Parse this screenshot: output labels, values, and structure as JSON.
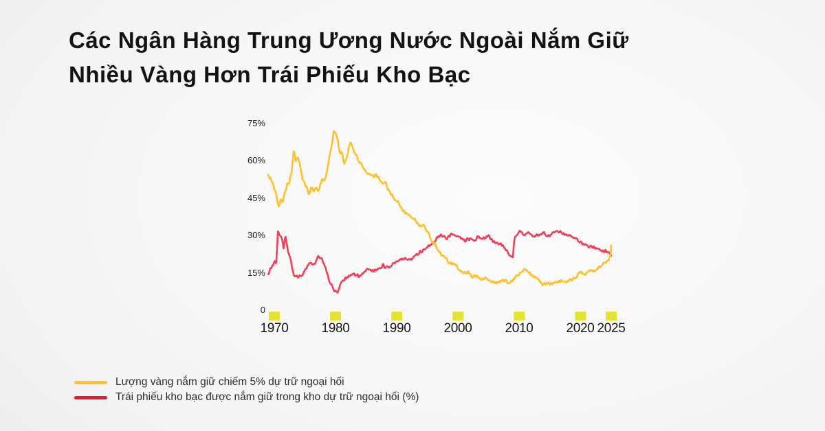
{
  "title": {
    "line1": "Các Ngân Hàng Trung Ương Nước Ngoài Nắm Giữ",
    "line2": "Nhiều Vàng Hơn Trái Phiếu Kho Bạc"
  },
  "colors": {
    "gold_line": "#ffc02b",
    "treasury_line": "#f23e56",
    "treasury_swatch": "#e6172f",
    "tick_square": "#e4e233",
    "title_text": "#131313",
    "axis_text": "#1b1b1b"
  },
  "legend": {
    "items": [
      {
        "label": "Lượng vàng nắm giữ chiếm 5% dự trữ ngoại hối",
        "color": "#ffc02b"
      },
      {
        "label": "Trái phiếu kho bạc được nắm giữ trong kho dự trữ ngoại hối (%)",
        "color": "#e6172f"
      }
    ]
  },
  "chart_data": {
    "type": "line",
    "title": "Các Ngân Hàng Trung Ương Nước Ngoài Nắm Giữ Nhiều Vàng Hơn Trái Phiếu Kho Bạc",
    "xlabel": "",
    "ylabel": "",
    "grid": false,
    "legend_position": "bottom-left",
    "xlim": [
      1969,
      2025
    ],
    "ylim": [
      0,
      75
    ],
    "x_ticks": [
      1970,
      1980,
      1990,
      2000,
      2010,
      2020,
      2025
    ],
    "y_ticks": [
      {
        "value": 75,
        "label": "75%"
      },
      {
        "value": 60,
        "label": "60%"
      },
      {
        "value": 45,
        "label": "45%"
      },
      {
        "value": 30,
        "label": "30%"
      },
      {
        "value": 15,
        "label": "15%"
      },
      {
        "value": 0,
        "label": "0"
      }
    ],
    "series": [
      {
        "name": "Lượng vàng nắm giữ chiếm 5% dự trữ ngoại hối",
        "color": "#ffc02b",
        "points": [
          [
            1969.0,
            54.5
          ],
          [
            1969.4,
            52.5
          ],
          [
            1969.8,
            50.5
          ],
          [
            1970.2,
            47.5
          ],
          [
            1970.7,
            42.0
          ],
          [
            1971.1,
            44.5
          ],
          [
            1971.4,
            44.0
          ],
          [
            1971.8,
            48.0
          ],
          [
            1972.1,
            50.5
          ],
          [
            1972.5,
            52.0
          ],
          [
            1972.8,
            55.0
          ],
          [
            1973.2,
            64.5
          ],
          [
            1973.5,
            60.0
          ],
          [
            1973.8,
            61.5
          ],
          [
            1974.2,
            58.5
          ],
          [
            1974.6,
            53.0
          ],
          [
            1974.9,
            51.5
          ],
          [
            1975.3,
            49.5
          ],
          [
            1975.6,
            46.0
          ],
          [
            1976.0,
            49.5
          ],
          [
            1976.4,
            48.0
          ],
          [
            1976.8,
            49.5
          ],
          [
            1977.2,
            48.0
          ],
          [
            1977.8,
            53.0
          ],
          [
            1978.2,
            51.5
          ],
          [
            1978.7,
            57.0
          ],
          [
            1979.0,
            62.0
          ],
          [
            1979.4,
            66.5
          ],
          [
            1979.7,
            72.5
          ],
          [
            1980.0,
            71.0
          ],
          [
            1980.3,
            69.0
          ],
          [
            1980.7,
            62.5
          ],
          [
            1981.0,
            64.0
          ],
          [
            1981.4,
            58.5
          ],
          [
            1981.8,
            61.0
          ],
          [
            1982.1,
            64.5
          ],
          [
            1982.4,
            67.8
          ],
          [
            1982.7,
            65.5
          ],
          [
            1983.0,
            64.0
          ],
          [
            1983.4,
            62.3
          ],
          [
            1983.8,
            59.9
          ],
          [
            1984.2,
            58.5
          ],
          [
            1984.6,
            56.9
          ],
          [
            1985.0,
            55.6
          ],
          [
            1985.4,
            54.5
          ],
          [
            1985.8,
            55.0
          ],
          [
            1986.2,
            53.1
          ],
          [
            1986.6,
            54.5
          ],
          [
            1987.0,
            53.1
          ],
          [
            1987.4,
            51.8
          ],
          [
            1987.9,
            50.9
          ],
          [
            1988.2,
            51.5
          ],
          [
            1988.5,
            48.8
          ],
          [
            1989.0,
            47.4
          ],
          [
            1989.6,
            44.7
          ],
          [
            1990.2,
            43.4
          ],
          [
            1990.8,
            40.7
          ],
          [
            1991.3,
            39.5
          ],
          [
            1991.7,
            38.8
          ],
          [
            1992.2,
            37.8
          ],
          [
            1992.8,
            36.6
          ],
          [
            1993.3,
            35.2
          ],
          [
            1993.8,
            33.8
          ],
          [
            1994.3,
            34.2
          ],
          [
            1994.8,
            32.5
          ],
          [
            1995.2,
            30.5
          ],
          [
            1995.7,
            27.5
          ],
          [
            1996.1,
            27.1
          ],
          [
            1996.6,
            24.8
          ],
          [
            1997.0,
            23.5
          ],
          [
            1997.4,
            22.0
          ],
          [
            1998.0,
            20.5
          ],
          [
            1998.5,
            19.2
          ],
          [
            1999.1,
            18.5
          ],
          [
            1999.7,
            17.9
          ],
          [
            2000.2,
            16.3
          ],
          [
            2000.8,
            15.2
          ],
          [
            2001.4,
            15.0
          ],
          [
            2001.9,
            14.9
          ],
          [
            2002.3,
            13.6
          ],
          [
            2003.0,
            13.8
          ],
          [
            2003.8,
            12.5
          ],
          [
            2004.4,
            13.0
          ],
          [
            2005.0,
            12.2
          ],
          [
            2005.4,
            11.7
          ],
          [
            2006.1,
            10.8
          ],
          [
            2006.8,
            11.1
          ],
          [
            2007.4,
            12.0
          ],
          [
            2007.7,
            12.2
          ],
          [
            2008.1,
            10.8
          ],
          [
            2008.8,
            11.7
          ],
          [
            2009.5,
            13.6
          ],
          [
            2010.3,
            15.2
          ],
          [
            2010.9,
            16.5
          ],
          [
            2011.5,
            15.2
          ],
          [
            2012.3,
            13.6
          ],
          [
            2013.0,
            13.0
          ],
          [
            2013.8,
            10.3
          ],
          [
            2014.5,
            10.8
          ],
          [
            2015.3,
            10.3
          ],
          [
            2016.0,
            10.8
          ],
          [
            2016.9,
            11.7
          ],
          [
            2017.6,
            11.1
          ],
          [
            2018.4,
            12.2
          ],
          [
            2019.2,
            13.0
          ],
          [
            2019.9,
            15.2
          ],
          [
            2020.6,
            14.4
          ],
          [
            2021.2,
            15.3
          ],
          [
            2021.8,
            15.7
          ],
          [
            2022.4,
            15.5
          ],
          [
            2023.0,
            17.1
          ],
          [
            2023.7,
            18.4
          ],
          [
            2024.3,
            19.8
          ],
          [
            2024.7,
            21.0
          ],
          [
            2024.9,
            22.5
          ],
          [
            2025.0,
            26.0
          ]
        ]
      },
      {
        "name": "Trái phiếu kho bạc được nắm giữ trong kho dự trữ ngoại hối (%)",
        "color": "#f23e56",
        "points": [
          [
            1969.0,
            14.5
          ],
          [
            1969.4,
            17.0
          ],
          [
            1969.8,
            18.0
          ],
          [
            1970.1,
            19.8
          ],
          [
            1970.3,
            18.2
          ],
          [
            1970.6,
            32.5
          ],
          [
            1970.9,
            29.5
          ],
          [
            1971.2,
            29.3
          ],
          [
            1971.5,
            25.2
          ],
          [
            1971.8,
            29.8
          ],
          [
            1972.2,
            24.0
          ],
          [
            1972.5,
            21.7
          ],
          [
            1972.9,
            17.6
          ],
          [
            1973.3,
            13.6
          ],
          [
            1973.8,
            13.2
          ],
          [
            1974.2,
            13.8
          ],
          [
            1974.7,
            14.4
          ],
          [
            1975.3,
            17.6
          ],
          [
            1975.8,
            19.2
          ],
          [
            1976.3,
            18.4
          ],
          [
            1976.8,
            19.5
          ],
          [
            1977.2,
            21.7
          ],
          [
            1977.8,
            20.3
          ],
          [
            1978.3,
            17.5
          ],
          [
            1978.6,
            15.2
          ],
          [
            1979.0,
            11.7
          ],
          [
            1979.5,
            9.5
          ],
          [
            1979.9,
            7.6
          ],
          [
            1980.3,
            7.0
          ],
          [
            1980.9,
            11.1
          ],
          [
            1981.4,
            12.2
          ],
          [
            1982.2,
            13.8
          ],
          [
            1982.9,
            14.4
          ],
          [
            1983.8,
            13.8
          ],
          [
            1984.5,
            15.0
          ],
          [
            1985.0,
            15.8
          ],
          [
            1985.5,
            16.5
          ],
          [
            1986.3,
            15.5
          ],
          [
            1987.0,
            16.8
          ],
          [
            1987.7,
            17.9
          ],
          [
            1988.5,
            17.0
          ],
          [
            1989.3,
            18.5
          ],
          [
            1990.3,
            20.0
          ],
          [
            1991.0,
            20.8
          ],
          [
            1991.5,
            21.1
          ],
          [
            1992.0,
            20.3
          ],
          [
            1992.5,
            20.8
          ],
          [
            1993.1,
            22.5
          ],
          [
            1993.7,
            23.3
          ],
          [
            1994.6,
            24.7
          ],
          [
            1995.3,
            26.0
          ],
          [
            1996.1,
            27.1
          ],
          [
            1996.6,
            29.8
          ],
          [
            1997.4,
            30.1
          ],
          [
            1998.1,
            28.7
          ],
          [
            1998.9,
            30.6
          ],
          [
            1999.6,
            29.3
          ],
          [
            2000.3,
            29.8
          ],
          [
            2001.1,
            27.9
          ],
          [
            2001.9,
            28.7
          ],
          [
            2002.6,
            27.9
          ],
          [
            2003.4,
            29.8
          ],
          [
            2004.1,
            28.5
          ],
          [
            2004.9,
            30.1
          ],
          [
            2005.6,
            27.9
          ],
          [
            2006.6,
            26.8
          ],
          [
            2007.3,
            25.7
          ],
          [
            2008.0,
            23.8
          ],
          [
            2008.9,
            20.6
          ],
          [
            2009.2,
            28.7
          ],
          [
            2009.5,
            30.1
          ],
          [
            2010.1,
            32.0
          ],
          [
            2010.7,
            29.8
          ],
          [
            2011.5,
            31.2
          ],
          [
            2012.3,
            29.8
          ],
          [
            2013.0,
            30.1
          ],
          [
            2013.8,
            31.2
          ],
          [
            2014.5,
            29.8
          ],
          [
            2015.3,
            30.6
          ],
          [
            2016.1,
            32.0
          ],
          [
            2016.8,
            31.2
          ],
          [
            2017.6,
            30.1
          ],
          [
            2018.4,
            30.1
          ],
          [
            2019.2,
            28.7
          ],
          [
            2019.9,
            27.4
          ],
          [
            2020.7,
            26.6
          ],
          [
            2021.4,
            25.7
          ],
          [
            2022.2,
            25.2
          ],
          [
            2023.0,
            24.7
          ],
          [
            2023.8,
            23.8
          ],
          [
            2024.3,
            23.3
          ],
          [
            2024.7,
            23.0
          ],
          [
            2025.0,
            21.9
          ]
        ]
      }
    ]
  }
}
